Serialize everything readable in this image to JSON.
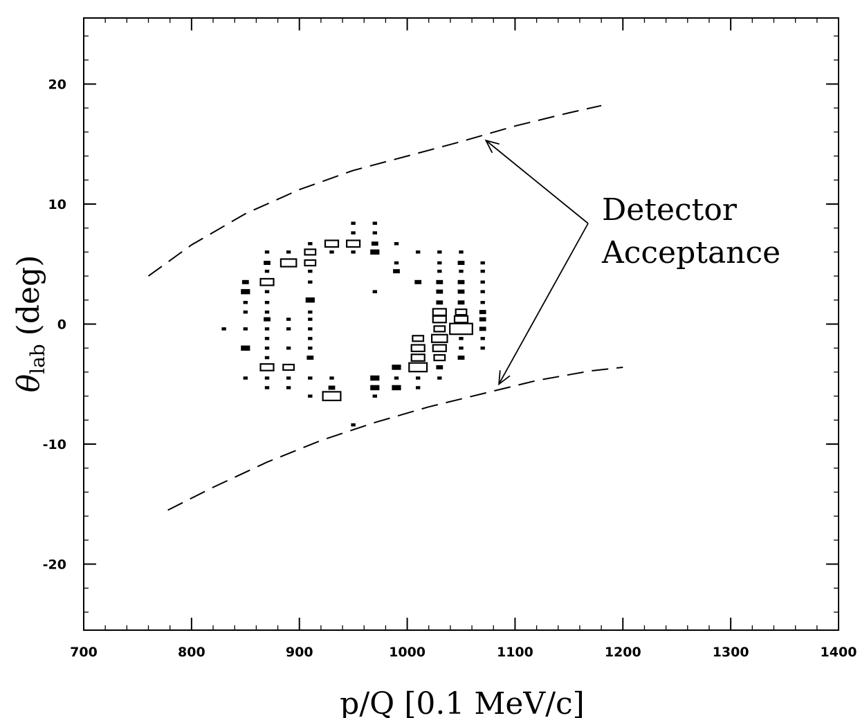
{
  "chart_data": {
    "type": "scatter",
    "style": "box-histogram",
    "xlabel": "p/Q [0.1 MeV/c]",
    "ylabel_main": "θ",
    "ylabel_sub": "lab",
    "ylabel_unit": "(deg)",
    "xlim": [
      700,
      1400
    ],
    "ylim": [
      -25.5,
      25.5
    ],
    "x_ticks": [
      700,
      800,
      900,
      1000,
      1100,
      1200,
      1300,
      1400
    ],
    "y_ticks": [
      -20,
      -10,
      0,
      10,
      20
    ],
    "x_tick_labels": [
      "700",
      "800",
      "900",
      "1000",
      "1100",
      "1200",
      "1300",
      "1400"
    ],
    "y_tick_labels": [
      "-20",
      "-10",
      "0",
      "10",
      "20"
    ],
    "grid": false,
    "annotation": {
      "lines": [
        "Detector",
        "Acceptance"
      ],
      "arrow_targets": [
        [
          1073,
          15.3
        ],
        [
          1085,
          -5
        ]
      ]
    },
    "acceptance_curves": [
      {
        "label": "upper",
        "points": [
          [
            760,
            4
          ],
          [
            800,
            6.6
          ],
          [
            850,
            9.2
          ],
          [
            900,
            11.2
          ],
          [
            950,
            12.8
          ],
          [
            1000,
            14.0
          ],
          [
            1050,
            15.2
          ],
          [
            1100,
            16.5
          ],
          [
            1150,
            17.6
          ],
          [
            1180,
            18.2
          ]
        ]
      },
      {
        "label": "lower",
        "points": [
          [
            778,
            -15.5
          ],
          [
            820,
            -13.6
          ],
          [
            870,
            -11.5
          ],
          [
            920,
            -9.7
          ],
          [
            970,
            -8.2
          ],
          [
            1020,
            -6.9
          ],
          [
            1070,
            -5.8
          ],
          [
            1120,
            -4.7
          ],
          [
            1170,
            -3.9
          ],
          [
            1200,
            -3.6
          ]
        ]
      }
    ],
    "boxes": [
      {
        "x": 830,
        "y": -0.4,
        "s": 1
      },
      {
        "x": 850,
        "y": 3.5,
        "s": 2
      },
      {
        "x": 850,
        "y": 2.7,
        "s": 3
      },
      {
        "x": 850,
        "y": 1.8,
        "s": 1
      },
      {
        "x": 850,
        "y": 1.0,
        "s": 1
      },
      {
        "x": 850,
        "y": -0.4,
        "s": 1
      },
      {
        "x": 850,
        "y": -2.0,
        "s": 3
      },
      {
        "x": 850,
        "y": -4.5,
        "s": 1
      },
      {
        "x": 870,
        "y": 6.0,
        "s": 1
      },
      {
        "x": 870,
        "y": 5.1,
        "s": 2
      },
      {
        "x": 870,
        "y": 4.4,
        "s": 1
      },
      {
        "x": 870,
        "y": 3.5,
        "s": 5
      },
      {
        "x": 870,
        "y": 2.7,
        "s": 1
      },
      {
        "x": 870,
        "y": 1.8,
        "s": 1
      },
      {
        "x": 870,
        "y": 1.0,
        "s": 1
      },
      {
        "x": 870,
        "y": 0.4,
        "s": 2
      },
      {
        "x": 870,
        "y": -0.4,
        "s": 1
      },
      {
        "x": 870,
        "y": -1.2,
        "s": 1
      },
      {
        "x": 870,
        "y": -2.0,
        "s": 1
      },
      {
        "x": 870,
        "y": -2.8,
        "s": 1
      },
      {
        "x": 870,
        "y": -3.6,
        "s": 5
      },
      {
        "x": 870,
        "y": -4.5,
        "s": 1
      },
      {
        "x": 870,
        "y": -5.3,
        "s": 1
      },
      {
        "x": 890,
        "y": 6.0,
        "s": 1
      },
      {
        "x": 890,
        "y": 5.1,
        "s": 6
      },
      {
        "x": 890,
        "y": 0.4,
        "s": 1
      },
      {
        "x": 890,
        "y": -0.4,
        "s": 1
      },
      {
        "x": 890,
        "y": -2.0,
        "s": 1
      },
      {
        "x": 890,
        "y": -3.6,
        "s": 4
      },
      {
        "x": 890,
        "y": -4.5,
        "s": 1
      },
      {
        "x": 890,
        "y": -5.3,
        "s": 1
      },
      {
        "x": 910,
        "y": 6.7,
        "s": 1
      },
      {
        "x": 910,
        "y": 6.0,
        "s": 4
      },
      {
        "x": 910,
        "y": 5.1,
        "s": 4
      },
      {
        "x": 910,
        "y": 4.4,
        "s": 1
      },
      {
        "x": 910,
        "y": 3.5,
        "s": 1
      },
      {
        "x": 910,
        "y": 2.0,
        "s": 3
      },
      {
        "x": 910,
        "y": 1.0,
        "s": 1
      },
      {
        "x": 910,
        "y": 0.4,
        "s": 1
      },
      {
        "x": 910,
        "y": -0.4,
        "s": 1
      },
      {
        "x": 910,
        "y": -1.2,
        "s": 1
      },
      {
        "x": 910,
        "y": -2.0,
        "s": 1
      },
      {
        "x": 910,
        "y": -2.8,
        "s": 2
      },
      {
        "x": 910,
        "y": -4.5,
        "s": 1
      },
      {
        "x": 910,
        "y": -6.0,
        "s": 1
      },
      {
        "x": 930,
        "y": 6.7,
        "s": 5
      },
      {
        "x": 930,
        "y": 6.0,
        "s": 1
      },
      {
        "x": 930,
        "y": -4.5,
        "s": 1
      },
      {
        "x": 930,
        "y": -5.3,
        "s": 2
      },
      {
        "x": 930,
        "y": -6.0,
        "s": 7
      },
      {
        "x": 950,
        "y": 8.4,
        "s": 1
      },
      {
        "x": 950,
        "y": 7.6,
        "s": 1
      },
      {
        "x": 950,
        "y": 6.7,
        "s": 5
      },
      {
        "x": 950,
        "y": 6.0,
        "s": 1
      },
      {
        "x": 950,
        "y": -8.4,
        "s": 1
      },
      {
        "x": 970,
        "y": 8.4,
        "s": 1
      },
      {
        "x": 970,
        "y": 7.6,
        "s": 1
      },
      {
        "x": 970,
        "y": 6.7,
        "s": 2
      },
      {
        "x": 970,
        "y": 6.0,
        "s": 3
      },
      {
        "x": 970,
        "y": 2.7,
        "s": 1
      },
      {
        "x": 970,
        "y": -4.5,
        "s": 3
      },
      {
        "x": 970,
        "y": -5.3,
        "s": 3
      },
      {
        "x": 970,
        "y": -6.0,
        "s": 1
      },
      {
        "x": 990,
        "y": 6.7,
        "s": 1
      },
      {
        "x": 990,
        "y": 5.1,
        "s": 1
      },
      {
        "x": 990,
        "y": 4.4,
        "s": 2
      },
      {
        "x": 990,
        "y": -3.6,
        "s": 3
      },
      {
        "x": 990,
        "y": -4.5,
        "s": 1
      },
      {
        "x": 990,
        "y": -5.3,
        "s": 3
      },
      {
        "x": 1010,
        "y": 6.0,
        "s": 1
      },
      {
        "x": 1010,
        "y": 3.5,
        "s": 2
      },
      {
        "x": 1010,
        "y": -1.2,
        "s": 4
      },
      {
        "x": 1010,
        "y": -2.0,
        "s": 5
      },
      {
        "x": 1010,
        "y": -2.8,
        "s": 5
      },
      {
        "x": 1010,
        "y": -3.6,
        "s": 7
      },
      {
        "x": 1010,
        "y": -4.5,
        "s": 1
      },
      {
        "x": 1010,
        "y": -5.3,
        "s": 1
      },
      {
        "x": 1030,
        "y": 6.0,
        "s": 1
      },
      {
        "x": 1030,
        "y": 5.1,
        "s": 1
      },
      {
        "x": 1030,
        "y": 4.4,
        "s": 1
      },
      {
        "x": 1030,
        "y": 3.5,
        "s": 2
      },
      {
        "x": 1030,
        "y": 2.7,
        "s": 2
      },
      {
        "x": 1030,
        "y": 1.8,
        "s": 2
      },
      {
        "x": 1030,
        "y": 1.0,
        "s": 5
      },
      {
        "x": 1030,
        "y": 0.4,
        "s": 5
      },
      {
        "x": 1030,
        "y": -0.4,
        "s": 4
      },
      {
        "x": 1030,
        "y": -1.2,
        "s": 6
      },
      {
        "x": 1030,
        "y": -2.0,
        "s": 5
      },
      {
        "x": 1030,
        "y": -2.8,
        "s": 4
      },
      {
        "x": 1030,
        "y": -3.6,
        "s": 2
      },
      {
        "x": 1030,
        "y": -4.5,
        "s": 1
      },
      {
        "x": 1050,
        "y": 6.0,
        "s": 1
      },
      {
        "x": 1050,
        "y": 5.1,
        "s": 2
      },
      {
        "x": 1050,
        "y": 4.4,
        "s": 1
      },
      {
        "x": 1050,
        "y": 3.5,
        "s": 2
      },
      {
        "x": 1050,
        "y": 2.7,
        "s": 2
      },
      {
        "x": 1050,
        "y": 1.8,
        "s": 2
      },
      {
        "x": 1050,
        "y": 1.0,
        "s": 4
      },
      {
        "x": 1050,
        "y": 0.4,
        "s": 5
      },
      {
        "x": 1050,
        "y": -0.4,
        "s": 9
      },
      {
        "x": 1050,
        "y": -1.2,
        "s": 1
      },
      {
        "x": 1050,
        "y": -2.0,
        "s": 1
      },
      {
        "x": 1050,
        "y": -2.8,
        "s": 2
      },
      {
        "x": 1070,
        "y": 5.1,
        "s": 1
      },
      {
        "x": 1070,
        "y": 4.4,
        "s": 1
      },
      {
        "x": 1070,
        "y": 3.5,
        "s": 1
      },
      {
        "x": 1070,
        "y": 2.7,
        "s": 1
      },
      {
        "x": 1070,
        "y": 1.8,
        "s": 1
      },
      {
        "x": 1070,
        "y": 1.0,
        "s": 2
      },
      {
        "x": 1070,
        "y": 0.4,
        "s": 2
      },
      {
        "x": 1070,
        "y": -0.4,
        "s": 2
      },
      {
        "x": 1070,
        "y": -1.2,
        "s": 1
      },
      {
        "x": 1070,
        "y": -2.0,
        "s": 1
      }
    ]
  }
}
